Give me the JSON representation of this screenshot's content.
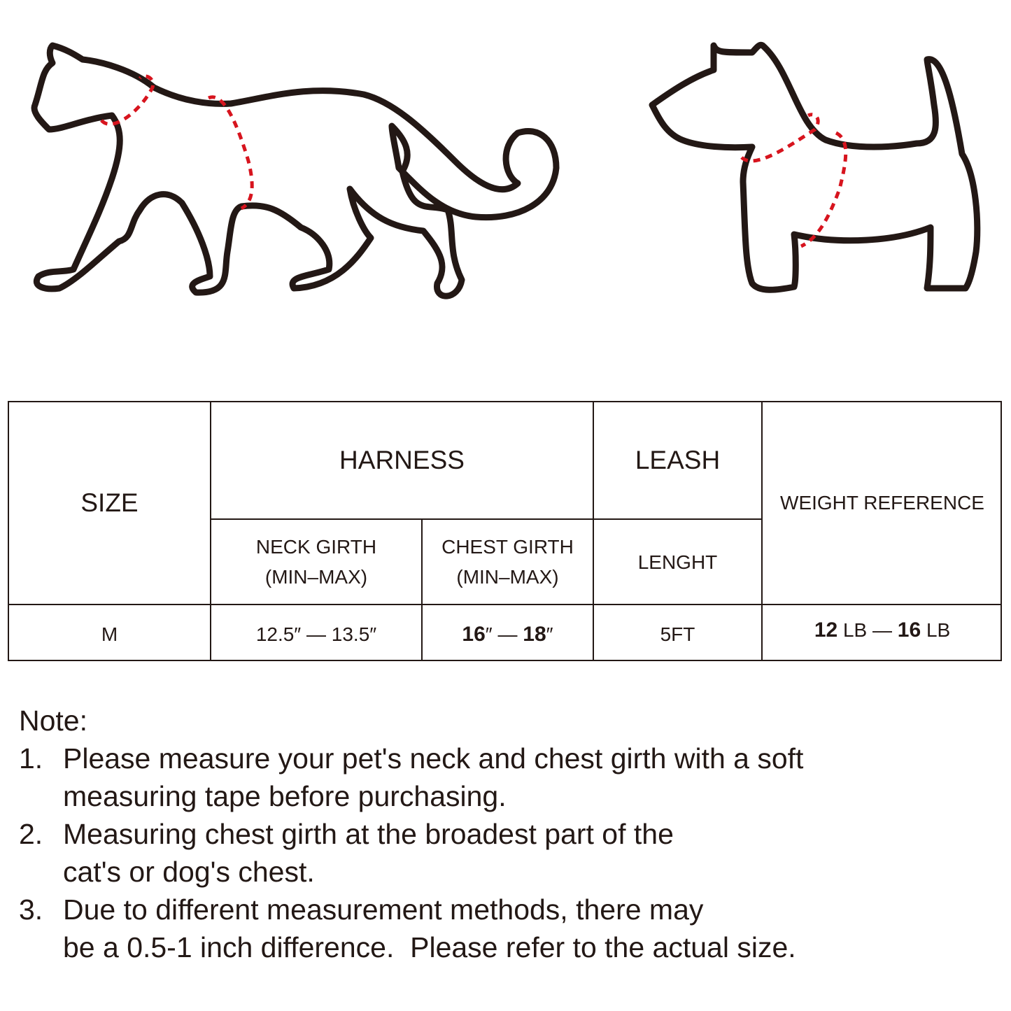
{
  "table": {
    "headers": {
      "size": "SIZE",
      "harness": "HARNESS",
      "leash": "LEASH",
      "weight": "WEIGHT REFERENCE",
      "neck_girth": [
        "NECK GIRTH",
        "(MIN–MAX)"
      ],
      "chest_girth": [
        "CHEST GIRTH",
        "(MIN–MAX)"
      ],
      "length": "LENGHT"
    },
    "row": {
      "size": "M",
      "neck": "12.5″ — 13.5″",
      "chest_min": "16",
      "chest_max": "18",
      "inch": "″",
      "dash": " — ",
      "length": "5FT",
      "weight_min": "12",
      "weight_max": "16",
      "weight_unit": "LB"
    }
  },
  "notes": {
    "title": "Note:",
    "items": [
      {
        "num": "1.",
        "lines": [
          "Please measure your pet's neck and chest girth with a soft",
          "measuring tape before purchasing."
        ]
      },
      {
        "num": "2.",
        "lines": [
          "Measuring chest girth at the broadest part of the",
          "cat's or dog's chest."
        ]
      },
      {
        "num": "3.",
        "lines": [
          "Due to different measurement methods, there may",
          "be a 0.5-1 inch difference.  Please refer to the actual size."
        ]
      }
    ]
  },
  "colors": {
    "outline": "#231815",
    "measure_line": "#d7141e"
  },
  "illustrations": [
    "cat-outline",
    "dog-outline"
  ]
}
